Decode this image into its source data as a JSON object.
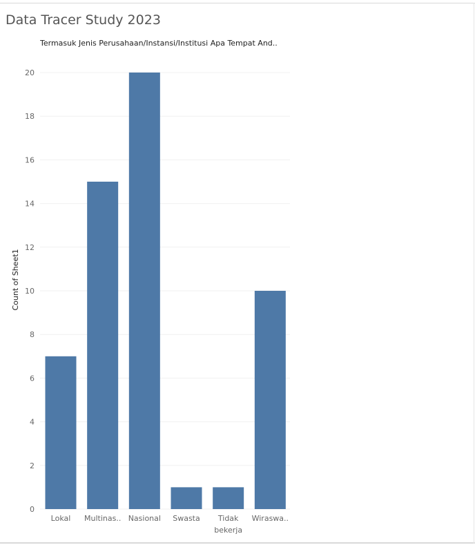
{
  "dashboard": {
    "title": "Data Tracer Study 2023"
  },
  "colors": {
    "bar": "#4e79a7",
    "grid": "#f0f0f0",
    "axis_text": "#666666"
  },
  "chart_data": {
    "type": "bar",
    "title": "Termasuk Jenis Perusahaan/Instansi/Institusi Apa Tempat And..",
    "xlabel": "",
    "ylabel": "Count of Sheet1",
    "categories": [
      "Lokal",
      "Multinas..",
      "Nasional",
      "Swasta",
      "Tidak bekerja",
      "Wiraswa.."
    ],
    "category_lines": [
      [
        "Lokal"
      ],
      [
        "Multinas.."
      ],
      [
        "Nasional"
      ],
      [
        "Swasta"
      ],
      [
        "Tidak",
        "bekerja"
      ],
      [
        "Wiraswa.."
      ]
    ],
    "values": [
      7,
      15,
      20,
      1,
      1,
      10
    ],
    "ylim": [
      0,
      20
    ],
    "yticks": [
      0,
      2,
      4,
      6,
      8,
      10,
      12,
      14,
      16,
      18,
      20
    ],
    "grid": true,
    "legend": "none"
  }
}
